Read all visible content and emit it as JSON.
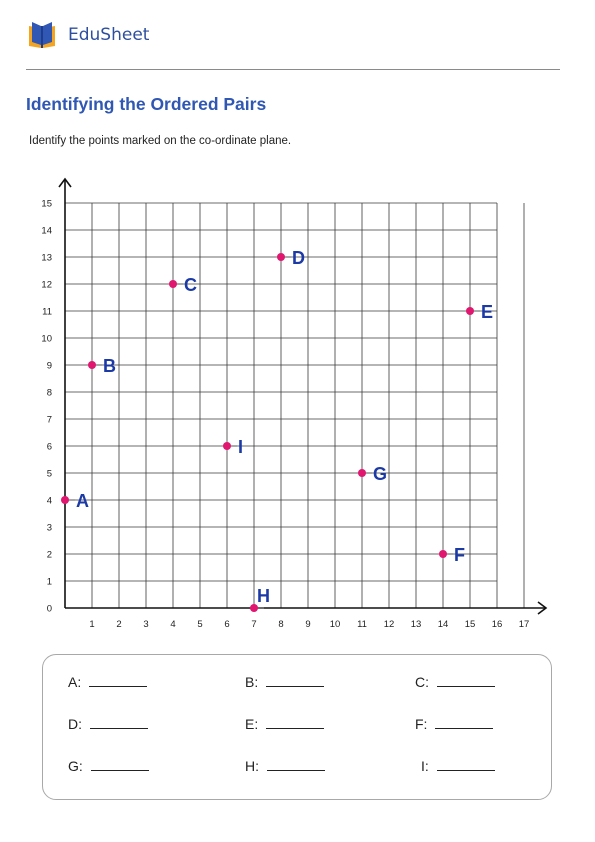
{
  "brand": {
    "name": "EduSheet",
    "logo_icon": "open-book-icon"
  },
  "worksheet": {
    "title": "Identifying the Ordered Pairs",
    "instruction": "Identify the points marked on the co-ordinate plane."
  },
  "chart_data": {
    "type": "scatter",
    "title": "",
    "xlabel": "",
    "ylabel": "",
    "xlim": [
      0,
      17
    ],
    "ylim": [
      0,
      15
    ],
    "grid": true,
    "x_ticks": [
      1,
      2,
      3,
      4,
      5,
      6,
      7,
      8,
      9,
      10,
      11,
      12,
      13,
      14,
      15,
      16,
      17
    ],
    "y_ticks": [
      0,
      1,
      2,
      3,
      4,
      5,
      6,
      7,
      8,
      9,
      10,
      11,
      12,
      13,
      14,
      15
    ],
    "points": [
      {
        "label": "A",
        "x": 0,
        "y": 4
      },
      {
        "label": "B",
        "x": 1,
        "y": 9
      },
      {
        "label": "C",
        "x": 4,
        "y": 12
      },
      {
        "label": "D",
        "x": 8,
        "y": 13
      },
      {
        "label": "E",
        "x": 15,
        "y": 11
      },
      {
        "label": "F",
        "x": 14,
        "y": 2
      },
      {
        "label": "G",
        "x": 11,
        "y": 5
      },
      {
        "label": "H",
        "x": 7,
        "y": 0
      },
      {
        "label": "I",
        "x": 6,
        "y": 6
      }
    ],
    "point_color": "#e0166f",
    "label_color": "#1c3aa6"
  },
  "answers": {
    "A": "A:",
    "B": "B:",
    "C": "C:",
    "D": "D:",
    "E": "E:",
    "F": "F:",
    "G": "G:",
    "H": "H:",
    "I": "I:"
  }
}
